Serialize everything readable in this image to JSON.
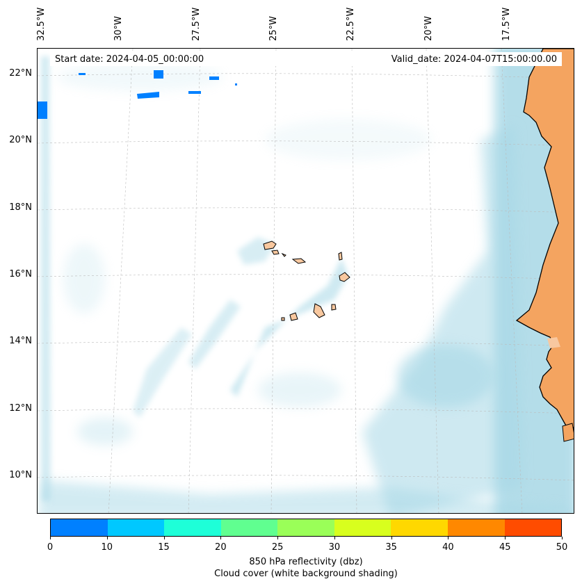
{
  "header": {
    "start_date": "Start date: 2024-04-05_00:00:00",
    "valid_date": "Valid_date: 2024-04-07T15:00:00.00"
  },
  "map": {
    "lon_labels": [
      "32.5°W",
      "30°W",
      "27.5°W",
      "25°W",
      "22.5°W",
      "20°W",
      "17.5°W"
    ],
    "lat_labels": [
      "22°N",
      "20°N",
      "18°N",
      "16°N",
      "14°N",
      "12°N",
      "10°N"
    ],
    "land_color": "#f4a460",
    "ocean_cloud_color": "#a7d8e6",
    "coastline_color": "#000000",
    "reflectivity_color_low": "#0080ff"
  },
  "colorbar": {
    "colors": [
      "#0080ff",
      "#00c8ff",
      "#1effd8",
      "#60ff90",
      "#9aff58",
      "#d8ff1e",
      "#ffd800",
      "#ff8800",
      "#ff4c00"
    ],
    "tick_labels": [
      "0",
      "10",
      "15",
      "20",
      "25",
      "30",
      "35",
      "40",
      "45",
      "50"
    ],
    "label_line1": "850 hPa reflectivity (dbz)",
    "label_line2": "Cloud cover (white background shading)"
  }
}
